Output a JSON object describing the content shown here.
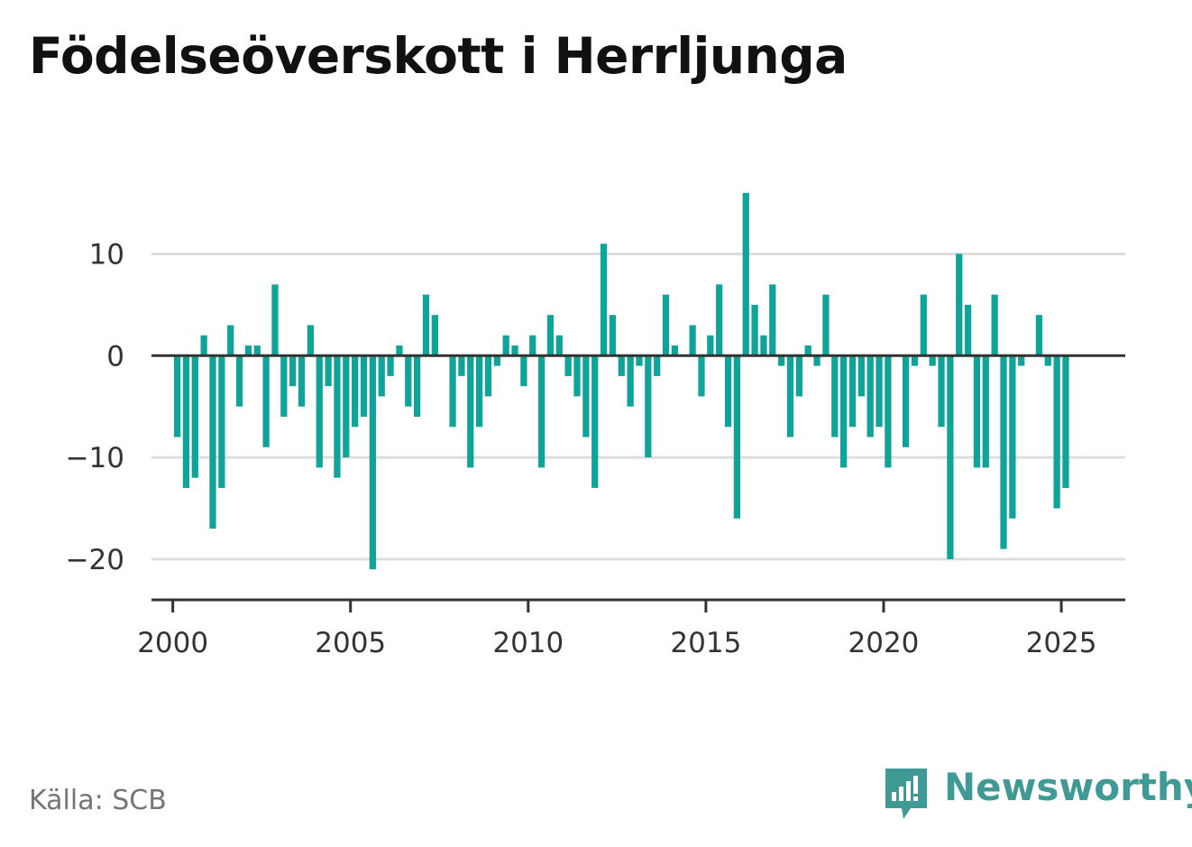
{
  "title": "Födelseöverskott i Herrljunga",
  "source": "Källa: SCB",
  "brand": "Newsworthy",
  "colors": {
    "bar": "#0fa39a",
    "zero_line": "#333333",
    "grid": "#dddddd",
    "axis": "#333333",
    "brand": "#3f9a96"
  },
  "chart_data": {
    "type": "bar",
    "x_unit": "quarter",
    "x_start": "2000-Q1",
    "xlim": [
      1999.4,
      2026.8
    ],
    "ylim": [
      -24,
      19
    ],
    "x_ticks": [
      2000,
      2005,
      2010,
      2015,
      2020,
      2025
    ],
    "x_tick_labels": [
      "2000",
      "2005",
      "2010",
      "2015",
      "2020",
      "2025"
    ],
    "y_ticks": [
      10,
      0,
      -10,
      -20
    ],
    "y_tick_labels": [
      "10",
      "0",
      "−10",
      "−20"
    ],
    "grid": true,
    "values": [
      -8,
      -13,
      -12,
      2,
      -17,
      -13,
      3,
      -5,
      1,
      1,
      -9,
      7,
      -6,
      -3,
      -5,
      3,
      -11,
      -3,
      -12,
      -10,
      -7,
      -6,
      -21,
      -4,
      -2,
      1,
      -5,
      -6,
      6,
      4,
      0,
      -7,
      -2,
      -11,
      -7,
      -4,
      -1,
      2,
      1,
      -3,
      2,
      -11,
      4,
      2,
      -2,
      -4,
      -8,
      -13,
      11,
      4,
      -2,
      -5,
      -1,
      -10,
      -2,
      6,
      1,
      0,
      3,
      -4,
      2,
      7,
      -7,
      -16,
      16,
      5,
      2,
      7,
      -1,
      -8,
      -4,
      1,
      -1,
      6,
      -8,
      -11,
      -7,
      -4,
      -8,
      -7,
      -11,
      0,
      -9,
      -1,
      6,
      -1,
      -7,
      -20,
      10,
      5,
      -11,
      -11,
      6,
      -19,
      -16,
      -1,
      0,
      4,
      -1,
      -15,
      -13
    ]
  }
}
